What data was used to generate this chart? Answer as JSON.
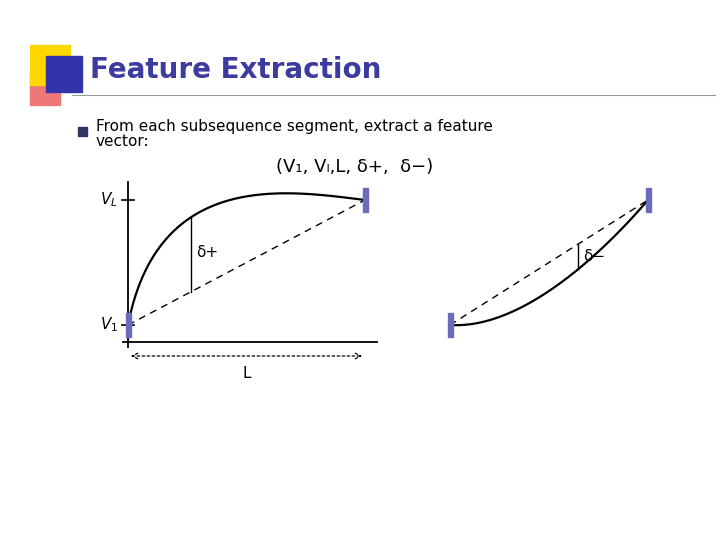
{
  "title": "Feature Extraction",
  "title_color": "#3B3BA0",
  "bg_color": "#FFFFFF",
  "bullet_text_line1": "From each subsequence segment, extract a feature",
  "bullet_text_line2": "vector:",
  "formula": "(V₁, Vₗ,L, δ+,  δ−)",
  "purple_bar_color": "#6B6BBB",
  "decoration_yellow": "#FFD700",
  "decoration_red": "#EE7777",
  "decoration_blue": "#3333AA"
}
